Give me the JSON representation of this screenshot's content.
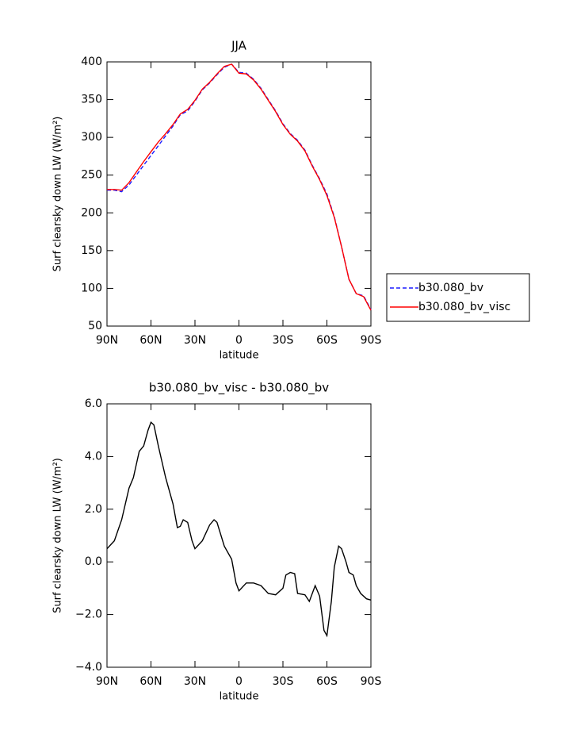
{
  "chart_data": [
    {
      "type": "line",
      "title": "JJA",
      "xlabel": "latitude",
      "ylabel": "Surf clearsky down LW (W/m²)",
      "x": [
        90,
        85,
        80,
        75,
        70,
        65,
        60,
        55,
        50,
        45,
        40,
        35,
        30,
        25,
        20,
        15,
        10,
        5,
        0,
        -5,
        -10,
        -15,
        -20,
        -25,
        -30,
        -35,
        -40,
        -45,
        -50,
        -55,
        -60,
        -65,
        -70,
        -75,
        -80,
        -85,
        -90
      ],
      "series": [
        {
          "name": "b30.080_bv",
          "color": "#1a1aff",
          "line_style": "dashed",
          "values": [
            230,
            230,
            228,
            237,
            250,
            263,
            276,
            289,
            302,
            315,
            330,
            335,
            348,
            363,
            372,
            383,
            393,
            397,
            386,
            385,
            377,
            365,
            350,
            335,
            318,
            305,
            296,
            283,
            263,
            245,
            225,
            195,
            155,
            112,
            93,
            90,
            72
          ]
        },
        {
          "name": "b30.080_bv_visc",
          "color": "#ff0000",
          "line_style": "solid",
          "values": [
            231,
            231,
            230,
            240,
            254,
            268,
            281,
            294,
            305,
            317,
            331,
            337,
            349,
            364,
            373,
            384,
            394,
            397,
            385,
            384,
            376,
            364,
            349,
            334,
            317,
            304,
            295,
            282,
            262,
            244,
            223,
            194,
            155,
            112,
            93,
            89,
            71
          ]
        }
      ],
      "xlim": [
        90,
        -90
      ],
      "xticks": [
        {
          "value": 90,
          "label": "90N"
        },
        {
          "value": 60,
          "label": "60N"
        },
        {
          "value": 30,
          "label": "30N"
        },
        0,
        {
          "value": -30,
          "label": "30S"
        },
        {
          "value": -60,
          "label": "60S"
        },
        {
          "value": -90,
          "label": "90S"
        }
      ],
      "ylim": [
        50,
        400
      ],
      "yticks": [
        50,
        100,
        150,
        200,
        250,
        300,
        350,
        400
      ],
      "legend": "right"
    },
    {
      "type": "line",
      "title": "b30.080_bv_visc - b30.080_bv",
      "xlabel": "latitude",
      "ylabel": "Surf clearsky down LW (W/m²)",
      "x": [
        90,
        85,
        80,
        75,
        72,
        70,
        68,
        65,
        62,
        60,
        58,
        55,
        50,
        45,
        42,
        40,
        38,
        35,
        32,
        30,
        25,
        20,
        17,
        15,
        10,
        5,
        2,
        0,
        -5,
        -10,
        -15,
        -20,
        -25,
        -30,
        -32,
        -35,
        -38,
        -40,
        -45,
        -48,
        -52,
        -55,
        -58,
        -60,
        -63,
        -65,
        -68,
        -70,
        -73,
        -75,
        -78,
        -80,
        -83,
        -87,
        -90
      ],
      "series": [
        {
          "name": null,
          "color": "#000000",
          "line_style": "solid",
          "values": [
            0.5,
            0.8,
            1.6,
            2.8,
            3.2,
            3.7,
            4.2,
            4.4,
            5.0,
            5.3,
            5.2,
            4.4,
            3.2,
            2.2,
            1.3,
            1.35,
            1.6,
            1.5,
            0.8,
            0.5,
            0.8,
            1.4,
            1.6,
            1.5,
            0.6,
            0.1,
            -0.8,
            -1.1,
            -0.8,
            -0.8,
            -0.9,
            -1.2,
            -1.25,
            -1.0,
            -0.5,
            -0.4,
            -0.45,
            -1.2,
            -1.25,
            -1.5,
            -0.9,
            -1.3,
            -2.6,
            -2.8,
            -1.5,
            -0.2,
            0.6,
            0.5,
            0.0,
            -0.4,
            -0.5,
            -0.9,
            -1.2,
            -1.4,
            -1.45
          ]
        }
      ],
      "xlim": [
        90,
        -90
      ],
      "xticks": [
        {
          "value": 90,
          "label": "90N"
        },
        {
          "value": 60,
          "label": "60N"
        },
        {
          "value": 30,
          "label": "30N"
        },
        0,
        {
          "value": -30,
          "label": "30S"
        },
        {
          "value": -60,
          "label": "60S"
        },
        {
          "value": -90,
          "label": "90S"
        }
      ],
      "ylim": [
        -4,
        6
      ],
      "yticks": [
        {
          "value": -4,
          "label": "−4.0"
        },
        {
          "value": -2,
          "label": "−2.0"
        },
        {
          "value": 0,
          "label": "0.0"
        },
        {
          "value": 2,
          "label": "2.0"
        },
        {
          "value": 4,
          "label": "4.0"
        },
        {
          "value": 6,
          "label": "6.0"
        }
      ]
    }
  ]
}
